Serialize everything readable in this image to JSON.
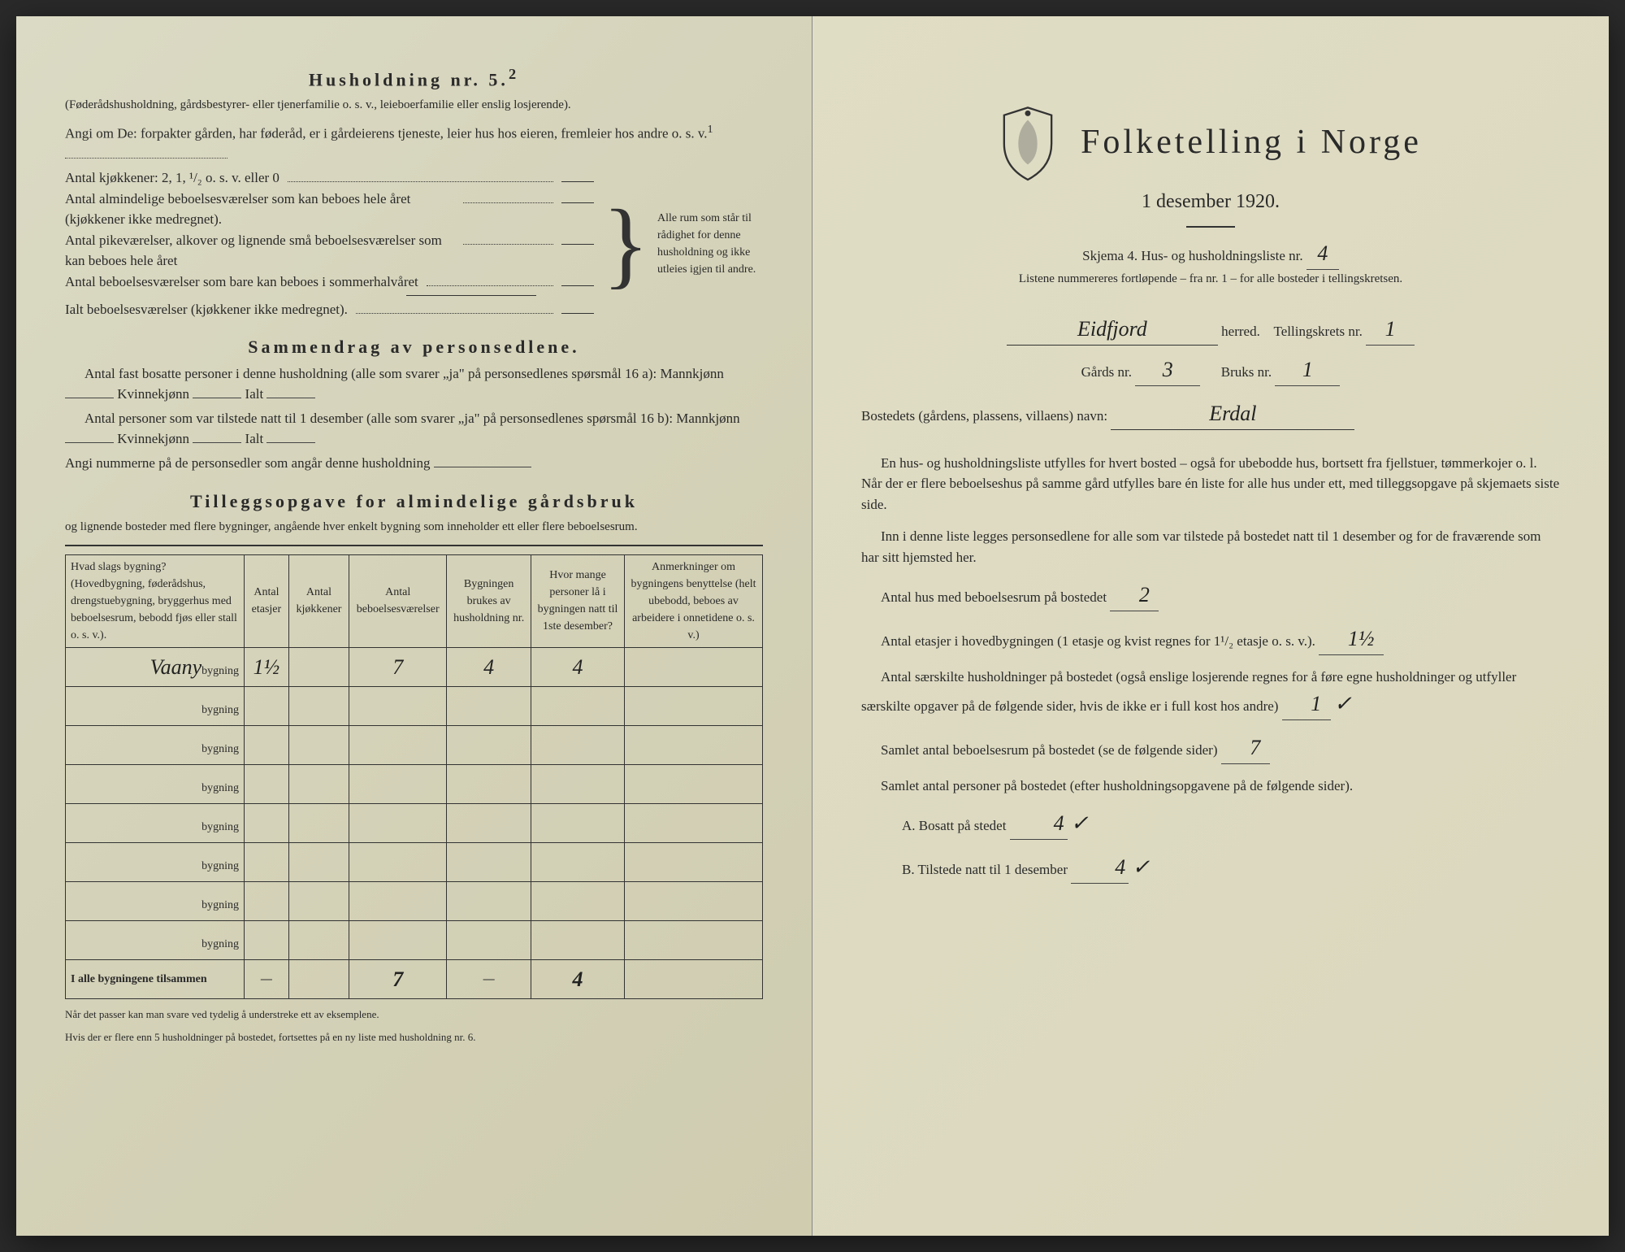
{
  "left": {
    "h5_title": "Husholdning nr. 5.",
    "h5_sup": "2",
    "h5_sub": "(Føderådshusholdning, gårdsbestyrer- eller tjenerfamilie o. s. v., leieboerfamilie eller enslig losjerende).",
    "angi_line": "Angi om De:  forpakter gården, har føderåd, er i gårdeierens tjeneste, leier hus hos eieren, fremleier hos andre o. s. v.",
    "angi_sup": "1",
    "kitchens": "Antal kjøkkener: 2, 1, ¹/₂ o. s. v. eller 0",
    "rooms1": "Antal almindelige beboelsesværelser som kan beboes hele året (kjøkkener ikke medregnet).",
    "rooms2": "Antal pikeværelser, alkover og lignende små beboelsesværelser som kan beboes hele året",
    "rooms3": "Antal beboelsesværelser som bare kan beboes i sommerhalvåret",
    "rooms_total": "Ialt beboelsesværelser  (kjøkkener ikke medregnet).",
    "brace_text": "Alle rum som står til rådighet for denne husholdning og ikke utleies igjen til andre.",
    "summary_title": "Sammendrag av personsedlene.",
    "sum_p1a": "Antal fast bosatte personer i denne husholdning (alle som svarer „ja\" på personsedlenes spørsmål 16 a): Mannkjønn",
    "sum_kv": "Kvinnekjønn",
    "sum_ialt": "Ialt",
    "sum_p2a": "Antal personer som var tilstede natt til 1 desember (alle som svarer „ja\" på personsedlenes spørsmål 16 b): Mannkjønn",
    "sum_p3": "Angi nummerne på de personsedler som angår denne husholdning",
    "tillegg_title": "Tilleggsopgave for almindelige gårdsbruk",
    "tillegg_sub": "og lignende bosteder med flere bygninger, angående hver enkelt bygning som inneholder ett eller flere beboelsesrum.",
    "table": {
      "headers": [
        "Hvad slags bygning?\n(Hovedbygning, føderådshus, drengstuebygning, bryggerhus med beboelsesrum, bebodd fjøs eller stall o. s. v.).",
        "Antal etasjer",
        "Antal kjøkkener",
        "Antal beboelsesværelser",
        "Bygningen brukes av husholdning nr.",
        "Hvor mange personer lå i bygningen natt til 1ste desember?",
        "Anmerkninger om bygningens benyttelse (helt ubebodd, beboes av arbeidere i onnetidene o. s. v.)"
      ],
      "rows": [
        {
          "type_hand": "Vaany",
          "type": "bygning",
          "etasjer": "1½",
          "kjokken": "",
          "bebo": "7",
          "hush": "4",
          "pers": "4",
          "anm": ""
        },
        {
          "type_hand": "",
          "type": "bygning",
          "etasjer": "",
          "kjokken": "",
          "bebo": "",
          "hush": "",
          "pers": "",
          "anm": ""
        },
        {
          "type_hand": "",
          "type": "bygning",
          "etasjer": "",
          "kjokken": "",
          "bebo": "",
          "hush": "",
          "pers": "",
          "anm": ""
        },
        {
          "type_hand": "",
          "type": "bygning",
          "etasjer": "",
          "kjokken": "",
          "bebo": "",
          "hush": "",
          "pers": "",
          "anm": ""
        },
        {
          "type_hand": "",
          "type": "bygning",
          "etasjer": "",
          "kjokken": "",
          "bebo": "",
          "hush": "",
          "pers": "",
          "anm": ""
        },
        {
          "type_hand": "",
          "type": "bygning",
          "etasjer": "",
          "kjokken": "",
          "bebo": "",
          "hush": "",
          "pers": "",
          "anm": ""
        },
        {
          "type_hand": "",
          "type": "bygning",
          "etasjer": "",
          "kjokken": "",
          "bebo": "",
          "hush": "",
          "pers": "",
          "anm": ""
        },
        {
          "type_hand": "",
          "type": "bygning",
          "etasjer": "",
          "kjokken": "",
          "bebo": "",
          "hush": "",
          "pers": "",
          "anm": ""
        }
      ],
      "footer_label": "I alle bygningene tilsammen",
      "footer": {
        "etasjer": "—",
        "kjokken": "",
        "bebo": "7",
        "hush": "—",
        "pers": "4",
        "anm": ""
      }
    },
    "foot1": "Når det passer kan man svare ved tydelig å understreke ett av eksemplene.",
    "foot2": "Hvis der er flere enn 5 husholdninger på bostedet, fortsettes på en ny liste med husholdning nr. 6."
  },
  "right": {
    "main_title": "Folketelling i Norge",
    "date": "1 desember 1920.",
    "skjema": "Skjema 4.  Hus- og husholdningsliste nr.",
    "skjema_val": "4",
    "listene": "Listene nummereres fortløpende – fra nr. 1 – for alle bosteder i tellingskretsen.",
    "herred_val": "Eidfjord",
    "herred_lbl": "herred.",
    "telling_lbl": "Tellingskrets nr.",
    "telling_val": "1",
    "gards_lbl": "Gårds nr.",
    "gards_val": "3",
    "bruks_lbl": "Bruks nr.",
    "bruks_val": "1",
    "bosted_lbl": "Bostedets (gårdens, plassens, villaens) navn:",
    "bosted_val": "Erdal",
    "p1": "En hus- og husholdningsliste utfylles for hvert bosted – også for ubebodde hus, bortsett fra fjellstuer, tømmerkojer o. l.  Når der er flere beboelseshus på samme gård utfylles bare én liste for alle hus under ett, med tilleggsopgave på skjemaets siste side.",
    "p2": "Inn i denne liste legges personsedlene for alle som var tilstede på bostedet natt til 1 desember og for de fraværende som har sitt hjemsted her.",
    "q1_lbl": "Antal hus med beboelsesrum på bostedet",
    "q1_val": "2",
    "q2_lbl": "Antal etasjer i hovedbygningen (1 etasje og kvist regnes for 1¹/₂ etasje o. s. v.).",
    "q2_val": "1½",
    "q3_lbl": "Antal særskilte husholdninger på bostedet (også enslige losjerende regnes for å føre egne husholdninger og utfyller særskilte opgaver på de følgende sider, hvis de ikke er i full kost hos andre)",
    "q3_val": "1",
    "q4_lbl": "Samlet antal beboelsesrum på bostedet (se de følgende sider)",
    "q4_val": "7",
    "q5_lbl": "Samlet antal personer på bostedet (efter husholdningsopgavene på de følgende sider).",
    "q5a_lbl": "A.  Bosatt på stedet",
    "q5a_val": "4",
    "q5b_lbl": "B.  Tilstede natt til 1 desember",
    "q5b_val": "4"
  },
  "colors": {
    "paper": "#d8d6c0",
    "ink": "#2a2a2a",
    "hand": "#1a1a1a"
  }
}
